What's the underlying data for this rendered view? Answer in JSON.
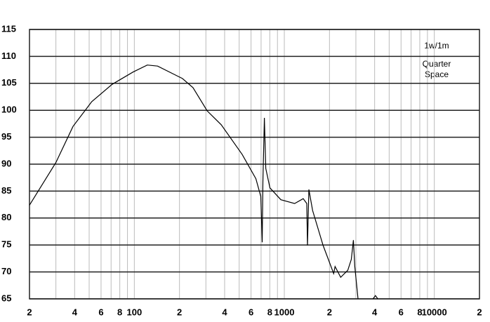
{
  "chart_data": {
    "type": "line",
    "annotations": [
      "1w/1m",
      "Quarter",
      "Space"
    ],
    "xscale": "log",
    "xlim": [
      20,
      20000
    ],
    "ylim": [
      65,
      115
    ],
    "yticks": [
      65,
      70,
      75,
      80,
      85,
      90,
      95,
      100,
      105,
      110,
      115
    ],
    "xticks": [
      {
        "value": 20,
        "label": "2"
      },
      {
        "value": 40,
        "label": "4"
      },
      {
        "value": 60,
        "label": "6"
      },
      {
        "value": 80,
        "label": "8"
      },
      100,
      {
        "value": 200,
        "label": "2"
      },
      {
        "value": 400,
        "label": "4"
      },
      {
        "value": 600,
        "label": "6"
      },
      {
        "value": 800,
        "label": "8"
      },
      1000,
      {
        "value": 2000,
        "label": "2"
      },
      {
        "value": 4000,
        "label": "4"
      },
      {
        "value": 6000,
        "label": "6"
      },
      {
        "value": 8000,
        "label": "8"
      },
      10000,
      {
        "value": 20000,
        "label": "2"
      }
    ],
    "x_minor_grid": [
      30,
      50,
      70,
      90,
      300,
      500,
      700,
      900,
      3000,
      5000,
      7000,
      9000
    ],
    "grid": true,
    "series": [
      {
        "color": "#000000",
        "x": [
          20,
          30,
          39,
          52,
          71,
          98,
          122,
          143,
          209,
          246,
          306,
          380,
          524,
          646,
          697,
          712,
          720,
          736,
          752,
          802,
          948,
          1172,
          1336,
          1411,
          1427,
          1458,
          1543,
          1814,
          2133,
          2180,
          2375,
          2650,
          2794,
          2886,
          2950,
          3100,
          3500,
          3900,
          4050,
          4200
        ],
        "values": [
          82.4,
          90.3,
          97.0,
          101.6,
          104.8,
          107.1,
          108.4,
          108.2,
          105.9,
          104.2,
          99.9,
          97.3,
          91.8,
          87.3,
          84.0,
          75.5,
          86.7,
          98.6,
          89.2,
          85.6,
          83.4,
          82.7,
          83.6,
          82.7,
          74.9,
          85.3,
          81.4,
          74.9,
          69.7,
          71.0,
          69.0,
          70.3,
          72.3,
          75.9,
          71.0,
          65,
          null,
          65,
          65.6,
          65
        ]
      }
    ]
  }
}
